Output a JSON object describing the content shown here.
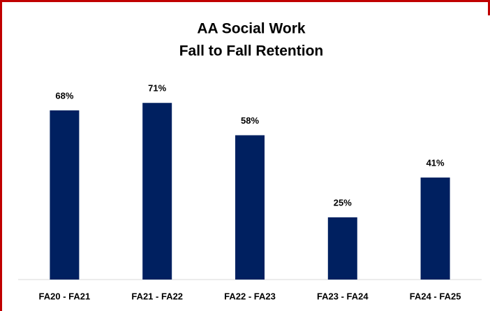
{
  "chart_data": {
    "type": "bar",
    "title": [
      "AA Social Work",
      "Fall to Fall Retention"
    ],
    "categories": [
      "FA20 - FA21",
      "FA21 - FA22",
      "FA22 - FA23",
      "FA23 - FA24",
      "FA24 - FA25"
    ],
    "values": [
      68,
      71,
      58,
      25,
      41
    ],
    "value_labels": [
      "68%",
      "71%",
      "58%",
      "25%",
      "41%"
    ],
    "color": "#002060",
    "ylim": [
      0,
      100
    ]
  }
}
